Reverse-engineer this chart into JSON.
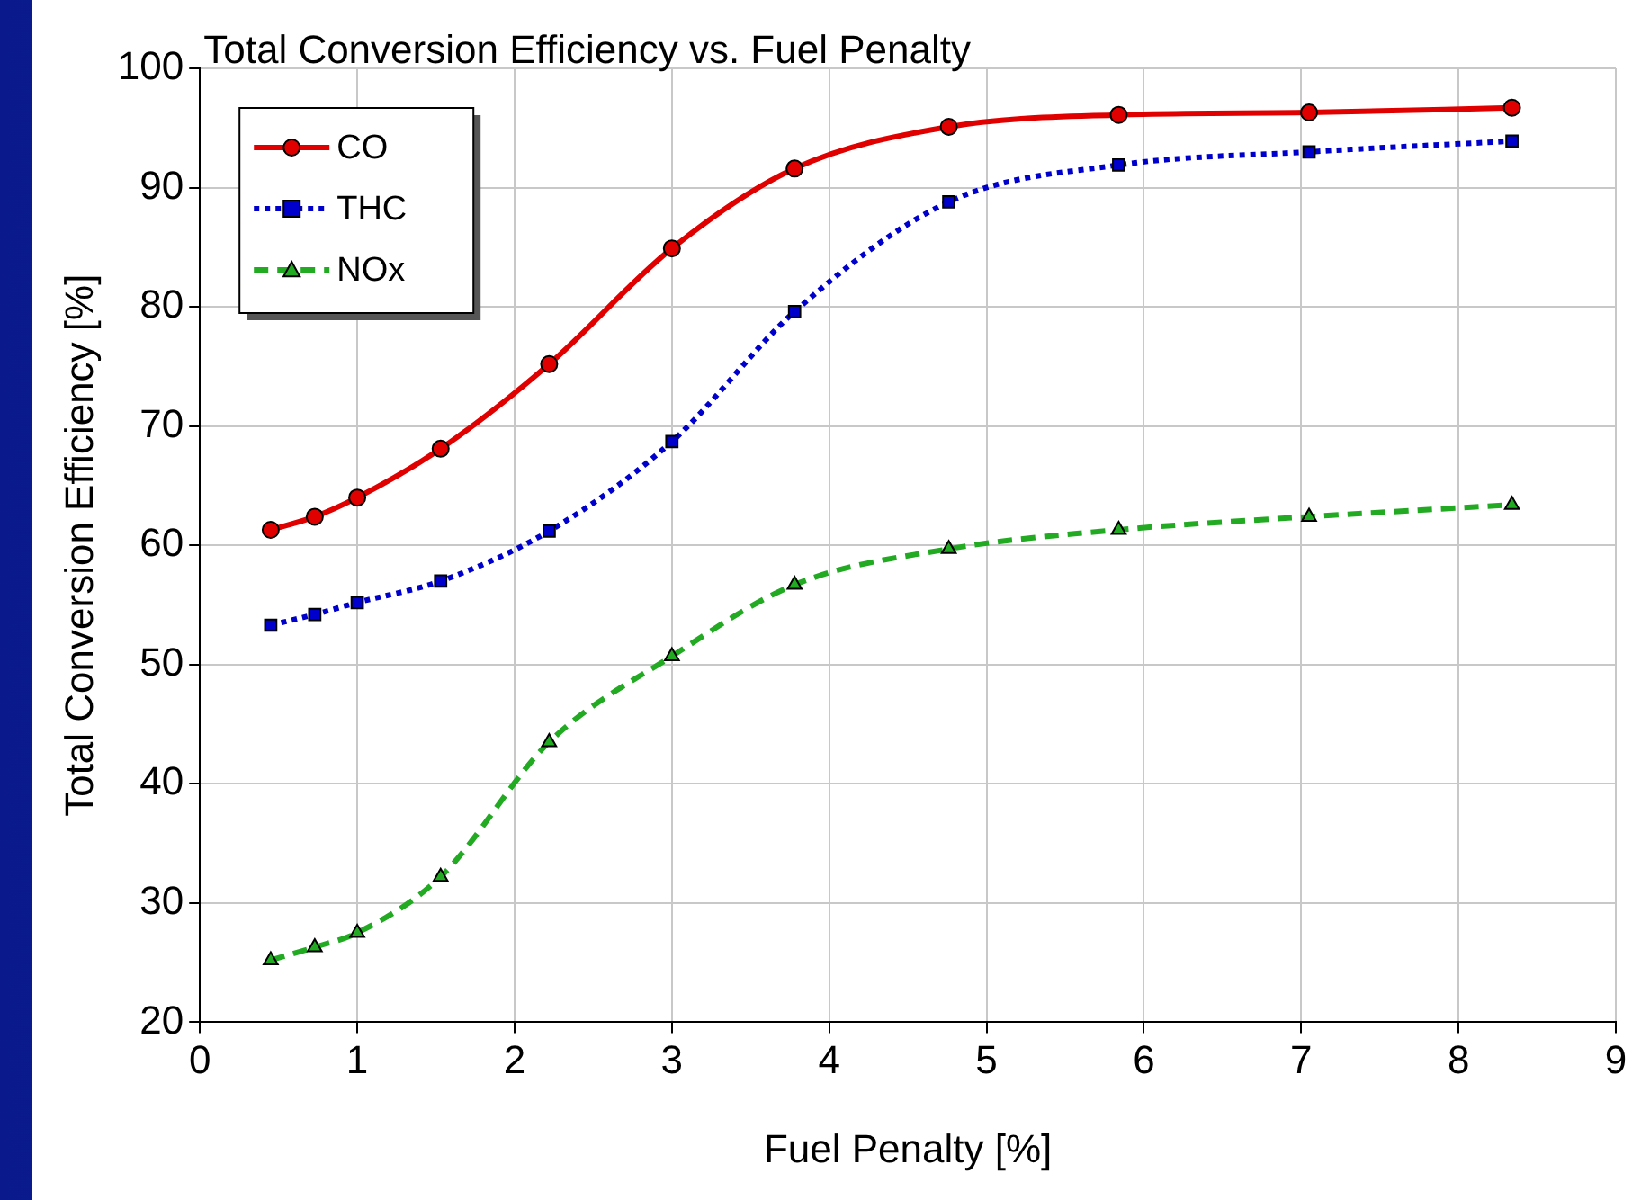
{
  "chart_data": {
    "type": "line",
    "title": "Total Conversion Efficiency vs. Fuel Penalty",
    "xlabel": "Fuel Penalty [%]",
    "ylabel": "Total Conversion Efficiency [%]",
    "x": [
      0.45,
      0.73,
      1.0,
      1.53,
      2.22,
      3.0,
      3.78,
      4.76,
      5.84,
      7.05,
      8.34
    ],
    "series": [
      {
        "name": "CO",
        "color": "#e00000",
        "marker": "circle",
        "line_style": "solid",
        "values": [
          61.3,
          62.4,
          64.0,
          68.1,
          75.2,
          84.9,
          91.6,
          95.1,
          96.1,
          96.3,
          96.7
        ]
      },
      {
        "name": "THC",
        "color": "#0000cc",
        "marker": "square",
        "line_style": "dotted",
        "values": [
          53.3,
          54.2,
          55.2,
          57.0,
          61.2,
          68.7,
          79.6,
          88.8,
          91.9,
          93.0,
          93.9
        ]
      },
      {
        "name": "NOx",
        "color": "#22aa22",
        "marker": "triangle",
        "line_style": "dashed",
        "values": [
          25.2,
          26.3,
          27.5,
          32.2,
          43.5,
          50.7,
          56.7,
          59.7,
          61.3,
          62.4,
          63.4
        ]
      }
    ],
    "xlim": [
      0,
      9
    ],
    "xticks": [
      0,
      1,
      2,
      3,
      4,
      5,
      6,
      7,
      8,
      9
    ],
    "ylim": [
      20,
      100
    ],
    "yticks": [
      20,
      30,
      40,
      50,
      60,
      70,
      80,
      90,
      100
    ],
    "grid": true,
    "legend": "top left"
  }
}
